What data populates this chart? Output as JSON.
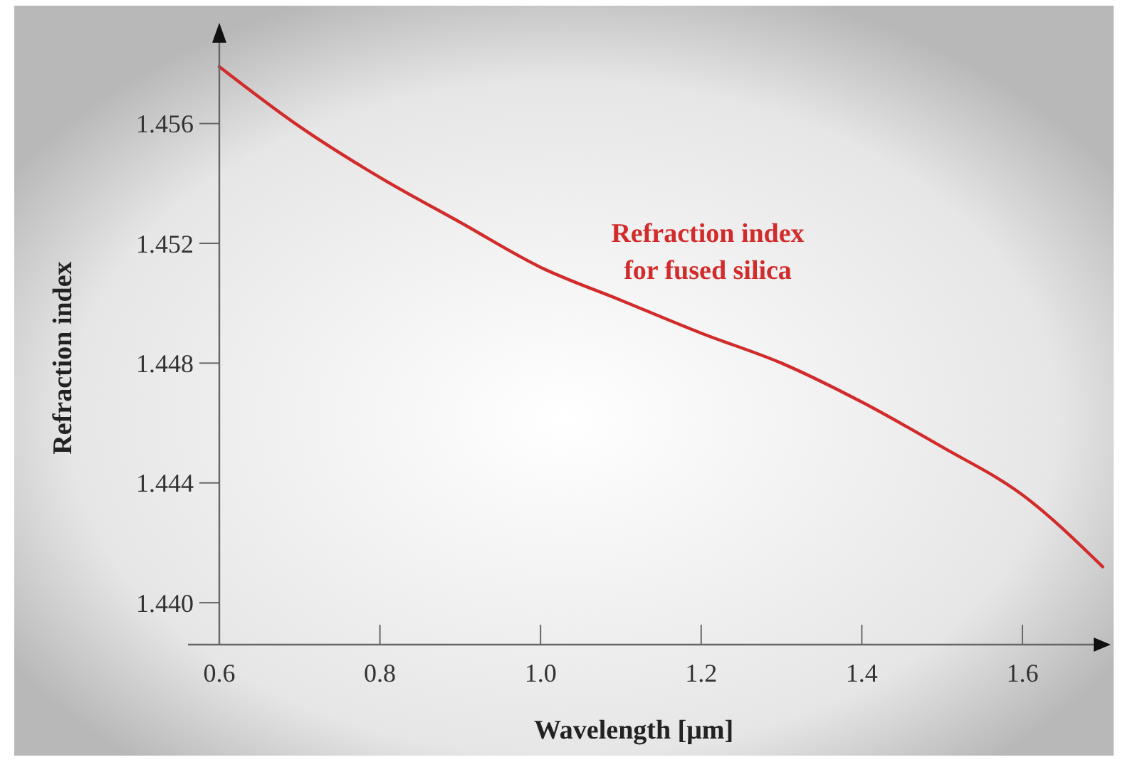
{
  "chart_data": {
    "type": "line",
    "xlabel": "Wavelength [μm]",
    "ylabel": "Refraction index",
    "x": [
      0.6,
      0.7,
      0.8,
      0.9,
      1.0,
      1.1,
      1.2,
      1.3,
      1.4,
      1.5,
      1.6,
      1.7
    ],
    "series": [
      {
        "color": "#d22b2b",
        "values": [
          1.4579,
          1.4559,
          1.4542,
          1.4527,
          1.4512,
          1.4501,
          1.449,
          1.448,
          1.4467,
          1.4452,
          1.4436,
          1.4412
        ]
      }
    ],
    "annotations": [
      "Refraction index\nfor fused silica"
    ],
    "xlim": [
      0.6,
      1.71
    ],
    "ylim": [
      1.4386,
      1.4587
    ],
    "xticks": [
      0.6,
      0.8,
      {
        "value": 1.0,
        "label": "1.0"
      },
      1.2,
      1.4,
      1.6
    ],
    "yticks": [
      {
        "value": 1.44,
        "label": "1.440"
      },
      1.444,
      1.448,
      1.452,
      1.456
    ],
    "grid": false,
    "marker": "none",
    "line_style": "solid"
  }
}
